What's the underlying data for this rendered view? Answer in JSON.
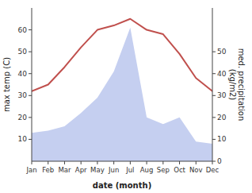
{
  "chart_data": {
    "type": "line",
    "xlabel": "date (month)",
    "ylabel": "max temp (C)",
    "y2label": "med. precipitation\n(kg/m2)",
    "categories": [
      "Jan",
      "Feb",
      "Mar",
      "Apr",
      "May",
      "Jun",
      "Jul",
      "Aug",
      "Sep",
      "Oct",
      "Nov",
      "Dec"
    ],
    "series": [
      {
        "type": "area",
        "axis": "y2",
        "color": "#c5cff0",
        "values": [
          13,
          14,
          16,
          22,
          29,
          41,
          61,
          20,
          17,
          20,
          9,
          8
        ]
      },
      {
        "type": "line",
        "color": "#c0504d",
        "values": [
          32,
          35,
          43,
          52,
          60,
          62,
          65,
          60,
          58,
          49,
          38,
          32
        ]
      }
    ],
    "ylim": [
      0,
      70
    ],
    "yticks": [
      10,
      20,
      30,
      40,
      50,
      60
    ],
    "y2lim": [
      0,
      70
    ],
    "y2ticks": [
      0,
      10,
      20,
      30,
      40,
      50
    ],
    "grid": false
  }
}
